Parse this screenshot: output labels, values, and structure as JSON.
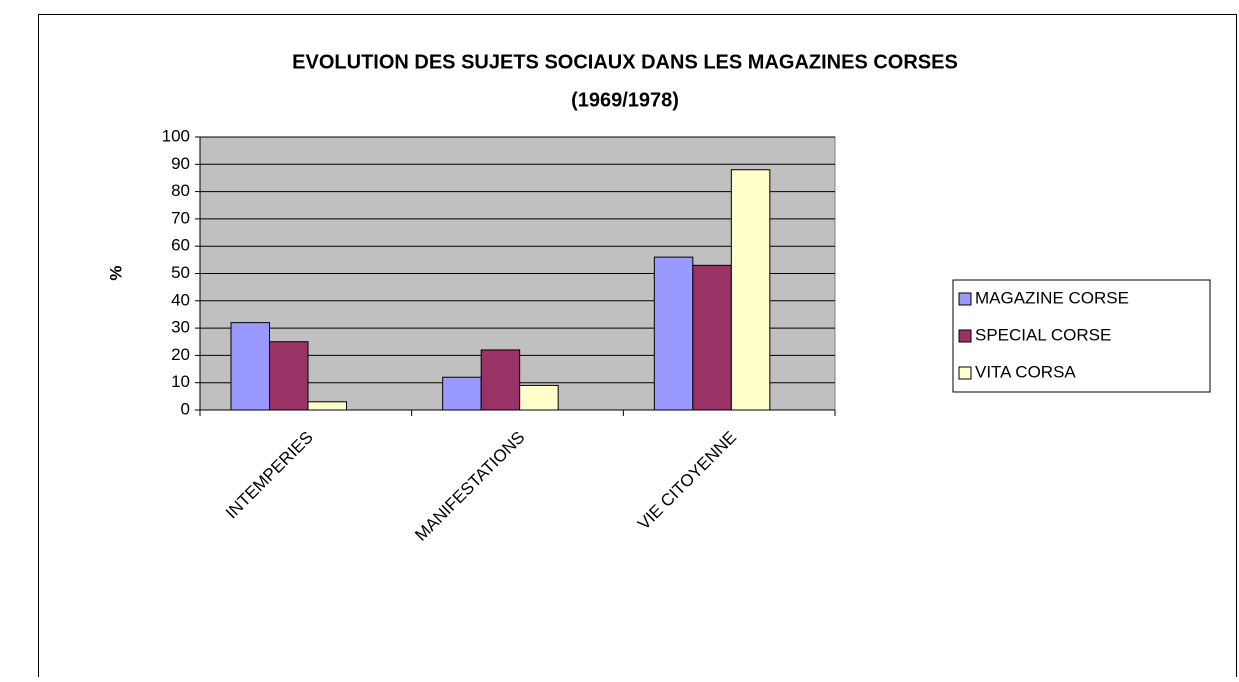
{
  "chart_data": {
    "type": "bar",
    "title": [
      "EVOLUTION DES SUJETS SOCIAUX DANS LES MAGAZINES CORSES",
      "(1969/1978)"
    ],
    "y_label": "%",
    "categories": [
      "INTEMPERIES",
      "MANIFESTATIONS",
      "VIE CITOYENNE"
    ],
    "series": [
      {
        "name": "MAGAZINE CORSE",
        "color": "#9999ff",
        "values": [
          32,
          12,
          56
        ]
      },
      {
        "name": "SPECIAL CORSE",
        "color": "#993366",
        "values": [
          25,
          22,
          53
        ]
      },
      {
        "name": "VITA CORSA",
        "color": "#ffffcc",
        "values": [
          3,
          9,
          88
        ]
      }
    ],
    "ylim": [
      0,
      100
    ],
    "yticks": [
      0,
      10,
      20,
      30,
      40,
      50,
      60,
      70,
      80,
      90,
      100
    ],
    "grid": true,
    "legend": "right"
  }
}
